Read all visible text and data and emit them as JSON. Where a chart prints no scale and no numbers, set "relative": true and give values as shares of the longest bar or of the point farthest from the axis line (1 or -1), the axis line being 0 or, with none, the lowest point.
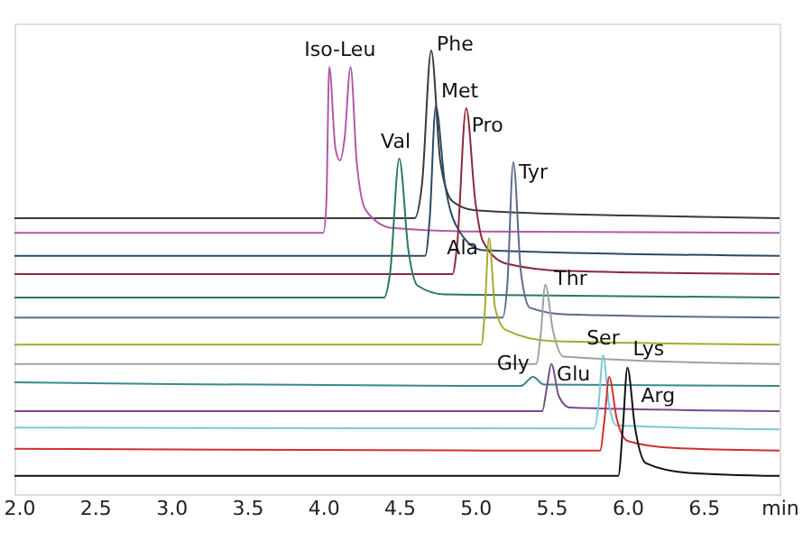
{
  "chart_data": {
    "type": "line",
    "relative": true,
    "grid": false,
    "marker": "none",
    "line_style": "solid",
    "tick_labels": "x",
    "xlim": [
      1.97,
      7.0
    ],
    "xticks": [
      {
        "value": 2,
        "label": "2.0"
      },
      {
        "value": 2.5,
        "label": "2.5"
      },
      {
        "value": 3,
        "label": "3.0"
      },
      {
        "value": 3.5,
        "label": "3.5"
      },
      {
        "value": 4,
        "label": "4.0"
      },
      {
        "value": 4.5,
        "label": "4.5"
      },
      {
        "value": 5,
        "label": "5.0"
      },
      {
        "value": 5.5,
        "label": "5.5"
      },
      {
        "value": 6,
        "label": "6.0"
      },
      {
        "value": 6.5,
        "label": "6.5"
      },
      {
        "value": 7,
        "label": "min"
      }
    ],
    "series": [
      {
        "color": "#3a3a3a",
        "x": [
          1.97,
          4.6,
          4.65,
          4.71,
          4.77,
          4.85,
          5.0,
          6.0,
          7.0
        ],
        "values": [
          0.622,
          0.622,
          0.7,
          1.0,
          0.75,
          0.66,
          0.64,
          0.628,
          0.622
        ]
      },
      {
        "color": "#b05aa8",
        "x": [
          1.97,
          4.0,
          4.02,
          4.04,
          4.08,
          4.11,
          4.14,
          4.18,
          4.22,
          4.28,
          4.45,
          5.0,
          7.0
        ],
        "values": [
          0.589,
          0.589,
          0.65,
          0.963,
          0.78,
          0.752,
          0.8,
          0.963,
          0.75,
          0.64,
          0.6,
          0.592,
          0.589
        ]
      },
      {
        "color": "#2a4a6a",
        "x": [
          1.97,
          4.67,
          4.7,
          4.74,
          4.8,
          4.9,
          5.05,
          7.0
        ],
        "values": [
          0.537,
          0.537,
          0.62,
          0.874,
          0.7,
          0.59,
          0.55,
          0.537
        ]
      },
      {
        "color": "#8b2a3a",
        "x": [
          1.97,
          4.85,
          4.88,
          4.94,
          5.0,
          5.05,
          5.2,
          5.6,
          7.0
        ],
        "values": [
          0.496,
          0.496,
          0.56,
          0.87,
          0.66,
          0.57,
          0.52,
          0.503,
          0.496
        ]
      },
      {
        "color": "#2a7a5a",
        "x": [
          1.97,
          4.4,
          4.44,
          4.5,
          4.56,
          4.62,
          4.8,
          7.0
        ],
        "values": [
          0.443,
          0.443,
          0.5,
          0.756,
          0.55,
          0.47,
          0.45,
          0.443
        ]
      },
      {
        "color": "#5a6a8a",
        "x": [
          1.97,
          5.18,
          5.21,
          5.25,
          5.3,
          5.36,
          5.6,
          7.0
        ],
        "values": [
          0.398,
          0.398,
          0.47,
          0.748,
          0.5,
          0.42,
          0.405,
          0.398
        ]
      },
      {
        "color": "#a8a830",
        "x": [
          1.97,
          5.04,
          5.06,
          5.09,
          5.13,
          5.2,
          5.5,
          7.0
        ],
        "values": [
          0.337,
          0.337,
          0.4,
          0.577,
          0.42,
          0.37,
          0.345,
          0.337
        ]
      },
      {
        "color": "#a0a0a0",
        "x": [
          1.97,
          5.4,
          5.43,
          5.46,
          5.51,
          5.58,
          7.0
        ],
        "values": [
          0.293,
          0.293,
          0.36,
          0.472,
          0.37,
          0.31,
          0.293
        ]
      },
      {
        "color": "#3a8a8a",
        "x": [
          1.97,
          3.0,
          5.3,
          5.38,
          5.45,
          7.0
        ],
        "values": [
          0.252,
          0.248,
          0.244,
          0.264,
          0.247,
          0.244
        ]
      },
      {
        "color": "#7a4a8a",
        "x": [
          1.97,
          5.44,
          5.47,
          5.5,
          5.55,
          5.62,
          7.0
        ],
        "values": [
          0.187,
          0.187,
          0.24,
          0.293,
          0.22,
          0.195,
          0.187
        ]
      },
      {
        "color": "#7ac8d8",
        "x": [
          1.97,
          5.78,
          5.81,
          5.84,
          5.88,
          5.93,
          7.0
        ],
        "values": [
          0.15,
          0.148,
          0.2,
          0.313,
          0.2,
          0.155,
          0.146
        ]
      },
      {
        "color": "#d03030",
        "x": [
          1.97,
          5.82,
          5.85,
          5.88,
          5.93,
          6.0,
          6.3,
          7.0
        ],
        "values": [
          0.102,
          0.098,
          0.17,
          0.264,
          0.17,
          0.12,
          0.104,
          0.098
        ]
      },
      {
        "color": "#111111",
        "x": [
          1.97,
          5.94,
          5.97,
          6.0,
          6.05,
          6.12,
          6.4,
          7.0
        ],
        "values": [
          0.041,
          0.041,
          0.15,
          0.285,
          0.15,
          0.07,
          0.048,
          0.041
        ]
      }
    ],
    "annotations": [
      {
        "text": "Iso-Leu",
        "x": 4.11,
        "y": 0.963
      },
      {
        "text": "Phe",
        "x": 4.71,
        "y": 1.0
      },
      {
        "text": "Met",
        "x": 4.74,
        "y": 0.874
      },
      {
        "text": "Pro",
        "x": 4.94,
        "y": 0.87
      },
      {
        "text": "Val",
        "x": 4.5,
        "y": 0.756
      },
      {
        "text": "Tyr",
        "x": 5.25,
        "y": 0.748
      },
      {
        "text": "Ala",
        "x": 5.09,
        "y": 0.577
      },
      {
        "text": "Thr",
        "x": 5.46,
        "y": 0.472
      },
      {
        "text": "Gly",
        "x": 5.38,
        "y": 0.264
      },
      {
        "text": "Glu",
        "x": 5.5,
        "y": 0.293
      },
      {
        "text": "Ser",
        "x": 5.84,
        "y": 0.313
      },
      {
        "text": "Lys",
        "x": 6.0,
        "y": 0.285
      },
      {
        "text": "Arg",
        "x": 6.03,
        "y": 0.22
      }
    ]
  }
}
